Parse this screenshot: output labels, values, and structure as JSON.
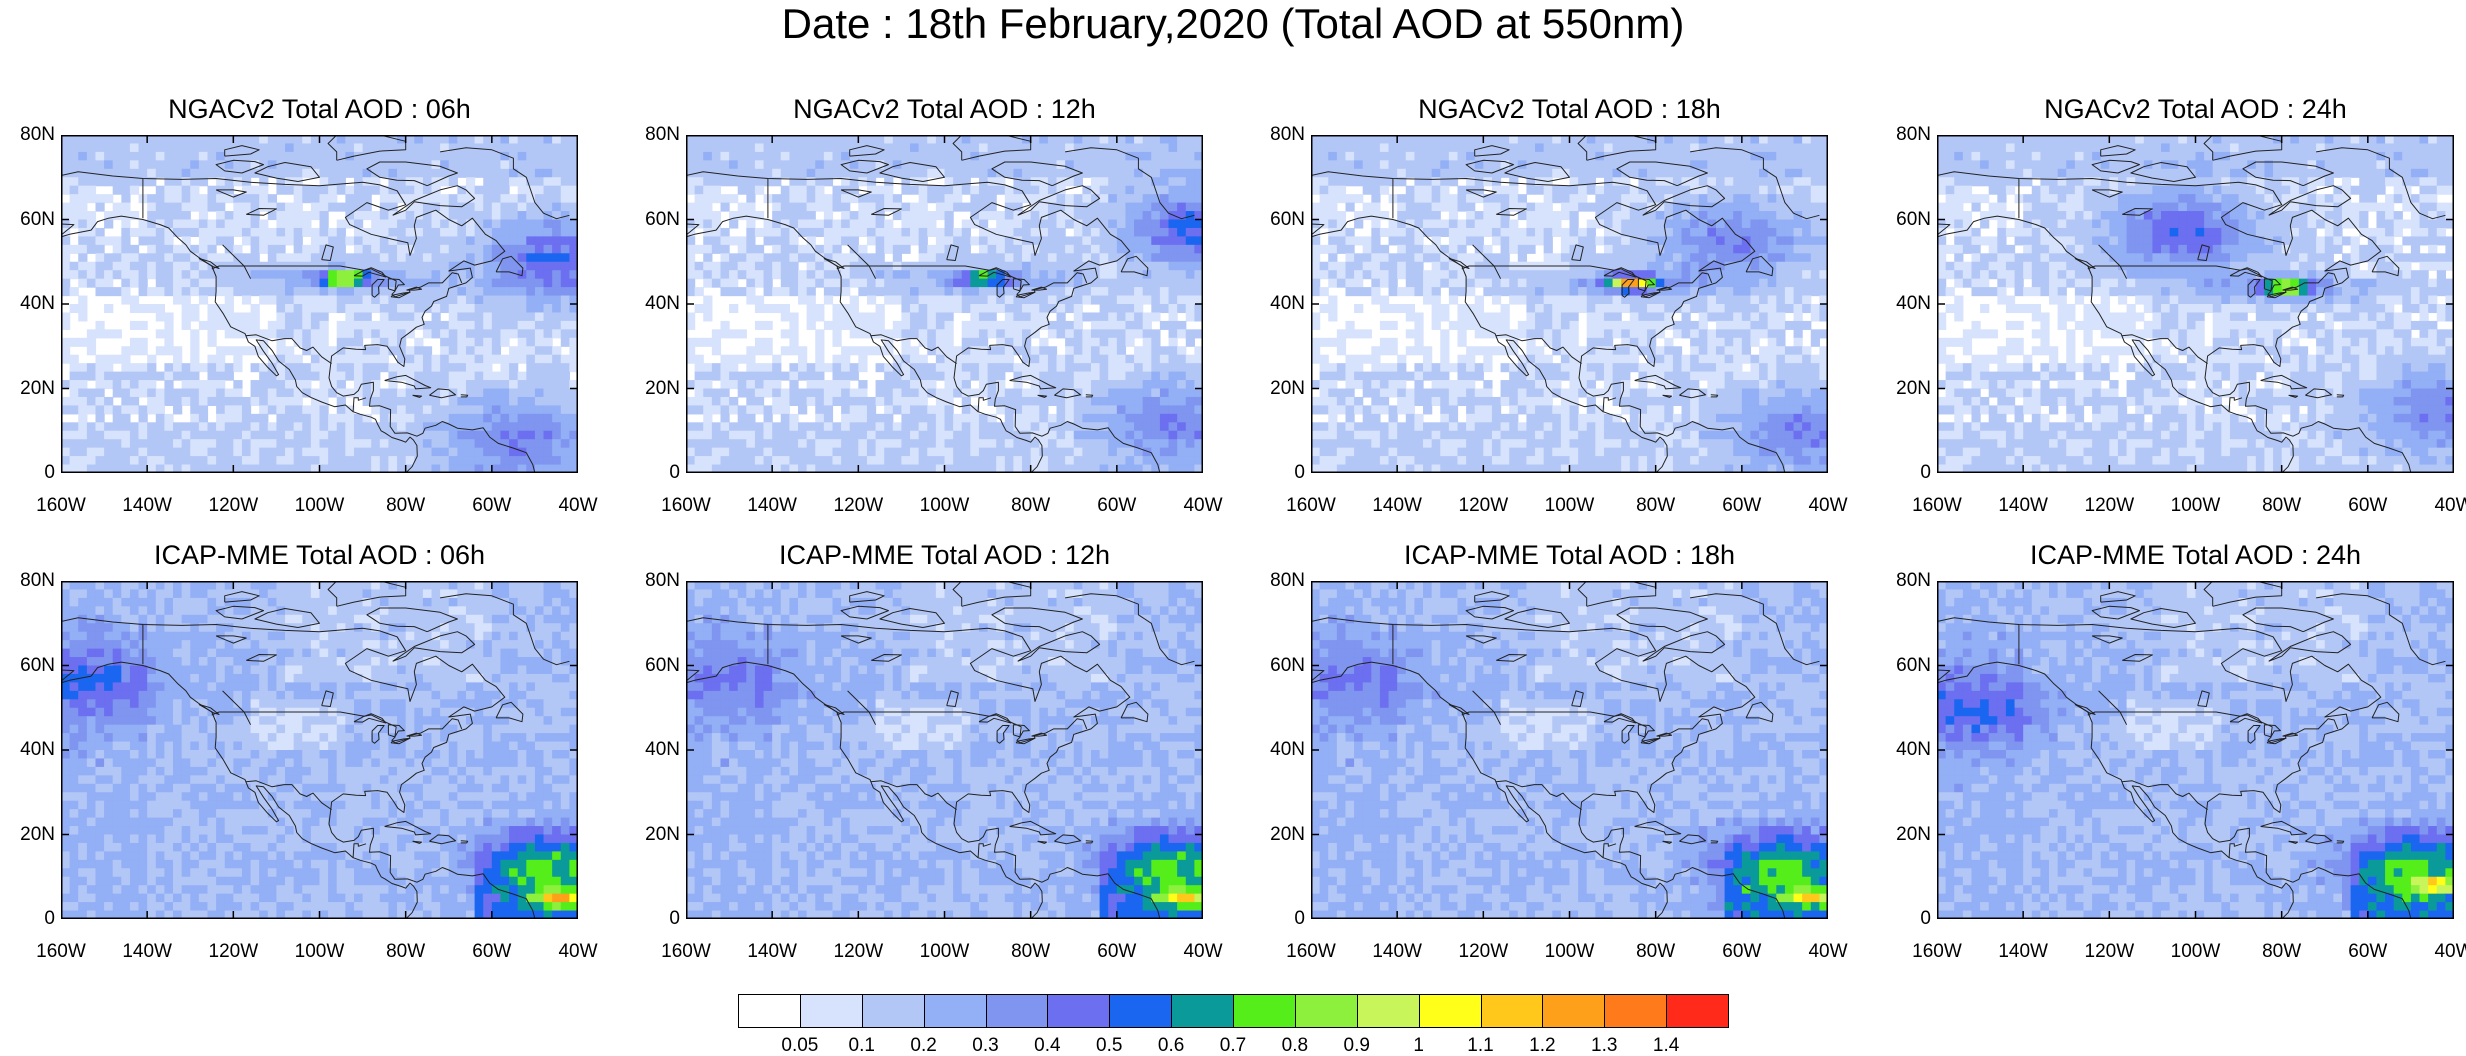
{
  "title": "Date : 18th February,2020 (Total AOD at 550nm)",
  "x_labels": [
    "160W",
    "140W",
    "120W",
    "100W",
    "80W",
    "60W",
    "40W"
  ],
  "y_labels": [
    "80N",
    "60N",
    "40N",
    "20N",
    "0"
  ],
  "panels": [
    {
      "title": "NGACv2 Total AOD : 06h",
      "model": "NGACv2",
      "hour": "06h",
      "hotspot": {
        "lon": -95,
        "lat": 46,
        "level": 0.85
      },
      "plumes": [
        {
          "lon": -47,
          "lat": 50,
          "level": 0.4
        },
        {
          "lon": -55,
          "lat": 8,
          "level": 0.3
        }
      ]
    },
    {
      "title": "NGACv2 Total AOD : 12h",
      "model": "NGACv2",
      "hour": "12h",
      "hotspot": {
        "lon": -92,
        "lat": 46,
        "level": 0.6
      },
      "plumes": [
        {
          "lon": -43,
          "lat": 58,
          "level": 0.4
        },
        {
          "lon": -48,
          "lat": 12,
          "level": 0.3
        }
      ]
    },
    {
      "title": "NGACv2 Total AOD : 18h",
      "model": "NGACv2",
      "hour": "18h",
      "hotspot": {
        "lon": -87,
        "lat": 45,
        "level": 1.0
      },
      "plumes": [
        {
          "lon": -63,
          "lat": 55,
          "level": 0.3
        },
        {
          "lon": -47,
          "lat": 10,
          "level": 0.3
        }
      ]
    },
    {
      "title": "NGACv2 Total AOD : 24h",
      "model": "NGACv2",
      "hour": "24h",
      "hotspot": {
        "lon": -80,
        "lat": 44,
        "level": 0.8
      },
      "plumes": [
        {
          "lon": -104,
          "lat": 57,
          "level": 0.4
        },
        {
          "lon": -45,
          "lat": 15,
          "level": 0.3
        }
      ]
    },
    {
      "title": "ICAP-MME Total AOD : 06h",
      "model": "ICAP-MME",
      "hour": "06h",
      "hotspot": {
        "lon": -45,
        "lat": 5,
        "level": 0.6
      },
      "plumes": [
        {
          "lon": -155,
          "lat": 56,
          "level": 0.3
        },
        {
          "lon": -48,
          "lat": 12,
          "level": 0.4
        }
      ]
    },
    {
      "title": "ICAP-MME Total AOD : 12h",
      "model": "ICAP-MME",
      "hour": "12h",
      "hotspot": {
        "lon": -45,
        "lat": 5,
        "level": 0.5
      },
      "plumes": [
        {
          "lon": -150,
          "lat": 56,
          "level": 0.2
        },
        {
          "lon": -48,
          "lat": 12,
          "level": 0.4
        }
      ]
    },
    {
      "title": "ICAP-MME Total AOD : 18h",
      "model": "ICAP-MME",
      "hour": "18h",
      "hotspot": {
        "lon": -45,
        "lat": 5,
        "level": 0.5
      },
      "plumes": [
        {
          "lon": -150,
          "lat": 56,
          "level": 0.2
        },
        {
          "lon": -52,
          "lat": 12,
          "level": 0.4
        }
      ]
    },
    {
      "title": "ICAP-MME Total AOD : 24h",
      "model": "ICAP-MME",
      "hour": "24h",
      "hotspot": {
        "lon": -45,
        "lat": 8,
        "level": 0.5
      },
      "plumes": [
        {
          "lon": -152,
          "lat": 50,
          "level": 0.3
        },
        {
          "lon": -50,
          "lat": 12,
          "level": 0.4
        }
      ]
    }
  ],
  "map_extent": {
    "lon_min": -160,
    "lon_max": -40,
    "lat_min": 0,
    "lat_max": 80
  },
  "colorbar": {
    "levels": [
      "0.05",
      "0.1",
      "0.2",
      "0.3",
      "0.4",
      "0.5",
      "0.6",
      "0.7",
      "0.8",
      "0.9",
      "1",
      "1.1",
      "1.2",
      "1.3",
      "1.4"
    ],
    "colors": [
      "#ffffff",
      "#d7e3fc",
      "#b3c7f7",
      "#93aff5",
      "#7f95f0",
      "#6b6ff0",
      "#1a66f0",
      "#0b9a9a",
      "#55ee1a",
      "#8cf03c",
      "#c8f55a",
      "#ffff1a",
      "#ffc81a",
      "#ffa01a",
      "#ff7a1a",
      "#ff2a1a"
    ]
  }
}
